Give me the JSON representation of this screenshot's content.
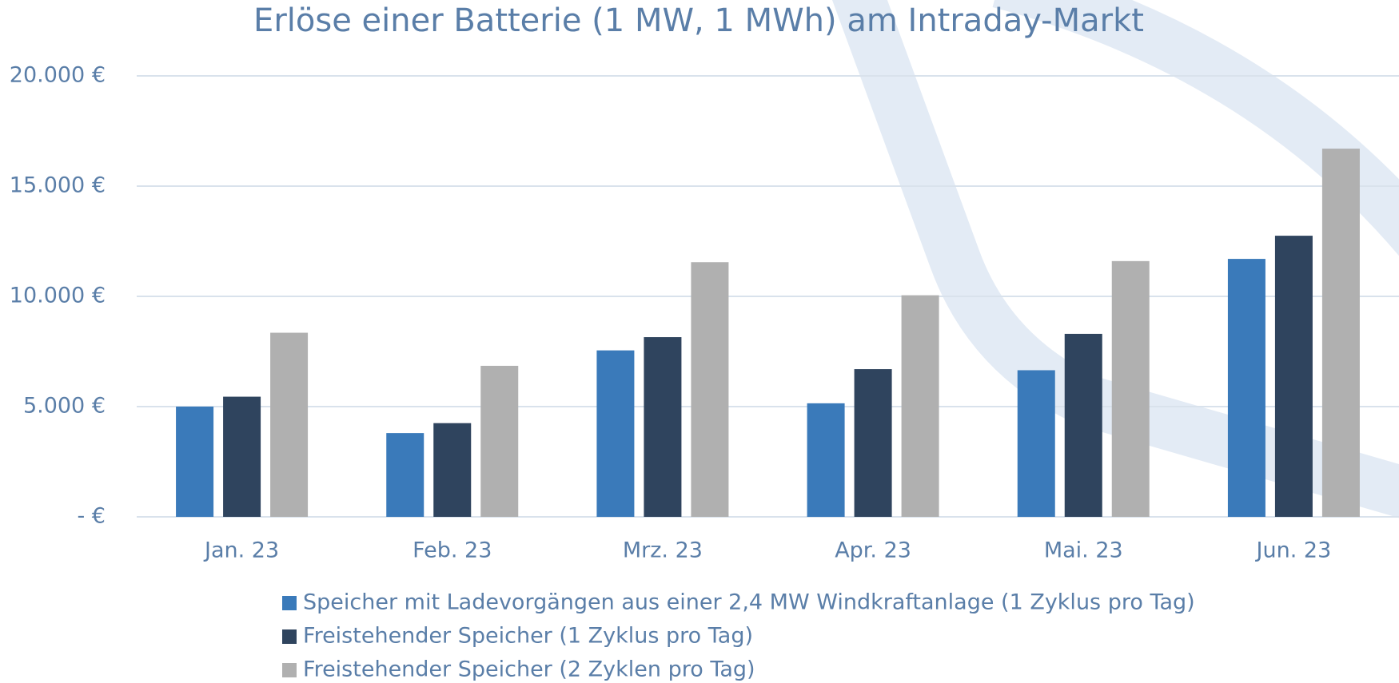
{
  "chart_data": {
    "type": "bar",
    "title": "Erlöse einer Batterie (1 MW, 1 MWh) am Intraday-Markt",
    "categories": [
      "Jan. 23",
      "Feb. 23",
      "Mrz. 23",
      "Apr. 23",
      "Mai. 23",
      "Jun. 23"
    ],
    "series": [
      {
        "name": "Speicher mit Ladevorgängen aus einer 2,4 MW Windkraftanlage (1 Zyklus pro Tag)",
        "color": "#3a7aba",
        "values": [
          5000,
          3800,
          7550,
          5150,
          6650,
          11700
        ]
      },
      {
        "name": "Freistehender Speicher (1 Zyklus pro Tag)",
        "color": "#2f445e",
        "values": [
          5450,
          4250,
          8150,
          6700,
          8300,
          12750
        ]
      },
      {
        "name": "Freistehender Speicher (2 Zyklen pro Tag)",
        "color": "#b0b0b0",
        "values": [
          8350,
          6850,
          11550,
          10050,
          11600,
          16700
        ]
      }
    ],
    "ylim": [
      0,
      20000
    ],
    "yticks": [
      {
        "value": 0,
        "label": "-   €"
      },
      {
        "value": 5000,
        "label": "5.000 €"
      },
      {
        "value": 10000,
        "label": "10.000 €"
      },
      {
        "value": 15000,
        "label": "15.000 €"
      },
      {
        "value": 20000,
        "label": "20.000 €"
      }
    ],
    "grid": true
  }
}
